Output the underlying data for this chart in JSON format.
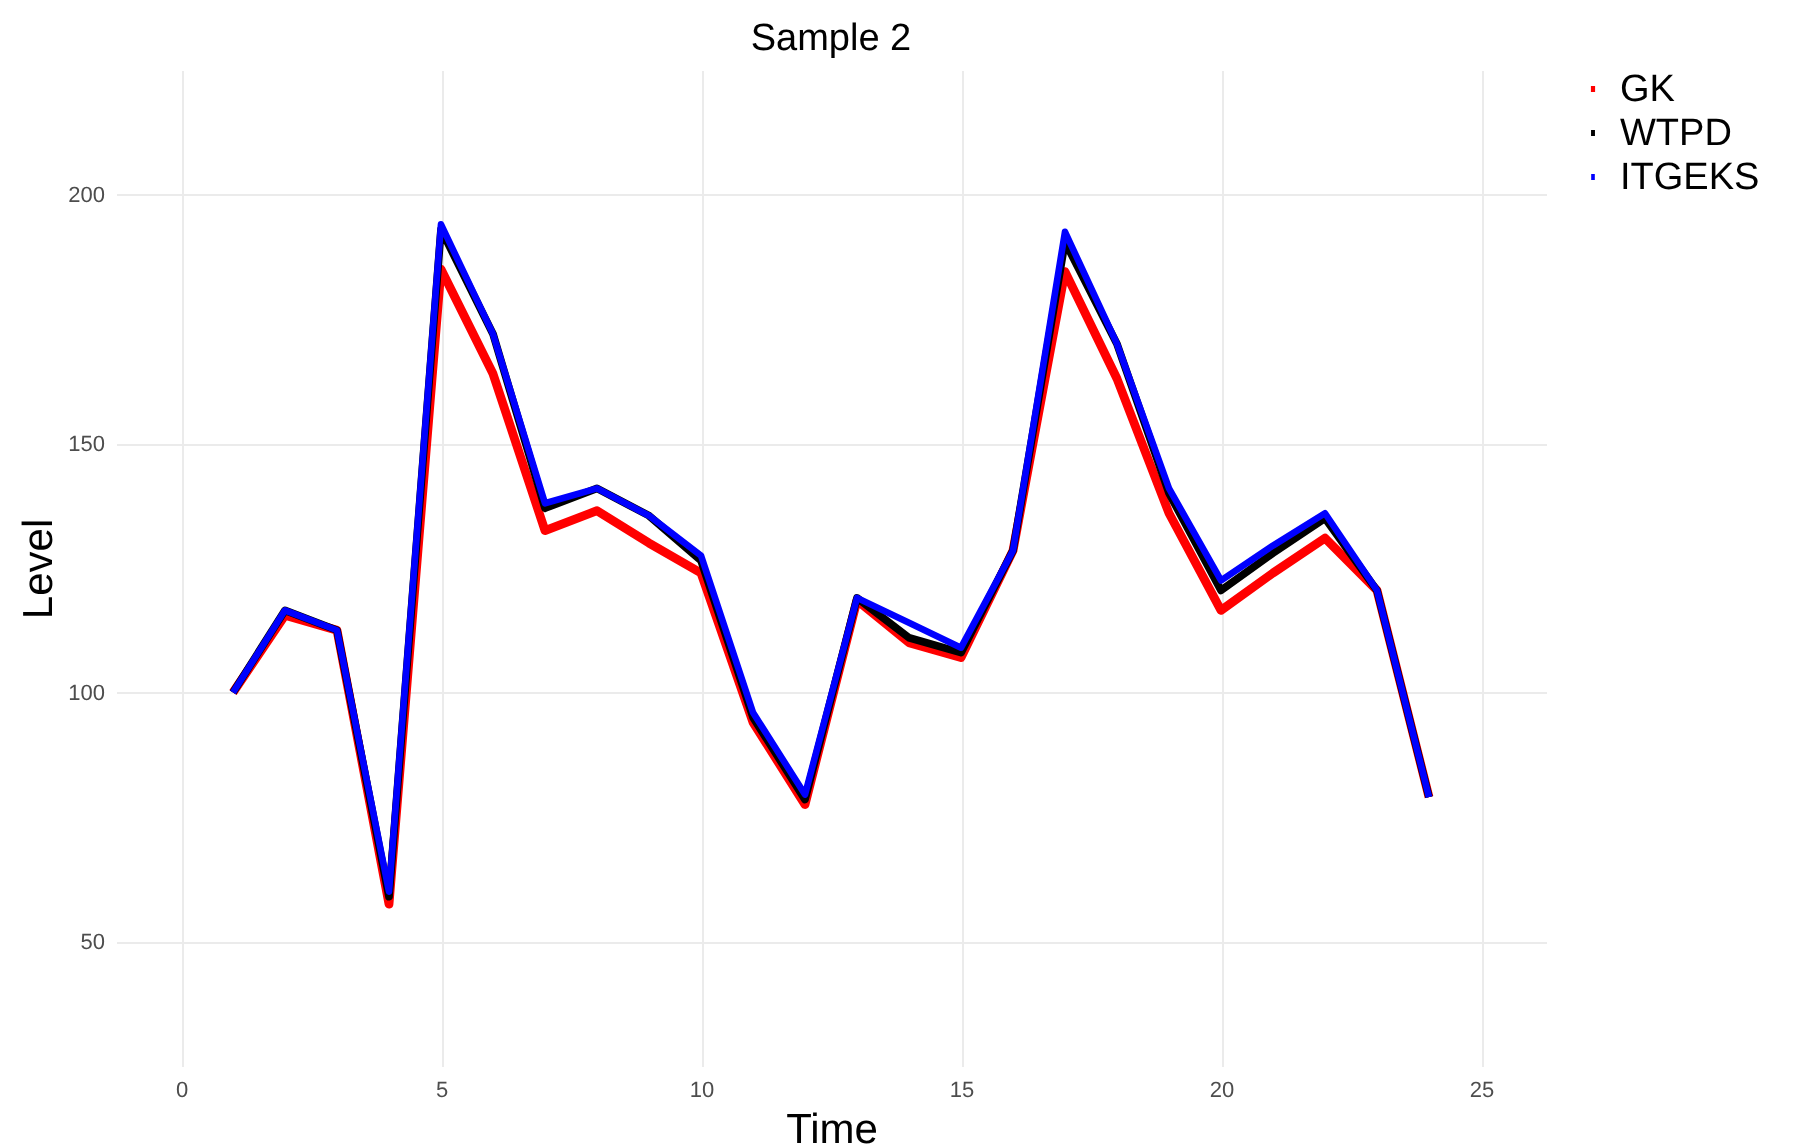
{
  "chart_data": {
    "type": "line",
    "title": "Sample 2",
    "xlabel": "Time",
    "ylabel": "Level",
    "x": [
      1,
      2,
      3,
      4,
      5,
      6,
      7,
      8,
      9,
      10,
      11,
      12,
      13,
      14,
      15,
      16,
      17,
      18,
      19,
      20,
      21,
      22,
      23,
      24
    ],
    "series": [
      {
        "name": "GK",
        "color": "#ff0000",
        "values": [
          100,
          115.5,
          112.5,
          57.5,
          185,
          164,
          132.5,
          136.5,
          130,
          124,
          94,
          77.5,
          118.5,
          110,
          107,
          128.5,
          184.5,
          163,
          136,
          116.5,
          124,
          131,
          120.5,
          79
        ]
      },
      {
        "name": "WTPD",
        "color": "#000000",
        "values": [
          100,
          116.5,
          112.5,
          59,
          193,
          172,
          137,
          141,
          135.5,
          126.5,
          95,
          78.5,
          119,
          111,
          108,
          128.5,
          190.5,
          170,
          140,
          120.5,
          128,
          135,
          120.5,
          79
        ]
      },
      {
        "name": "ITGEKS",
        "color": "#0000ff",
        "values": [
          100,
          116.5,
          112.5,
          60,
          194,
          172,
          138,
          141,
          135.5,
          127.5,
          96,
          79.5,
          119,
          114,
          109,
          128.5,
          192.5,
          170,
          141,
          122.5,
          129.5,
          136,
          120.5,
          79
        ]
      }
    ],
    "xlim": [
      -1.25,
      26.25
    ],
    "ylim": [
      25,
      225
    ],
    "xticks": [
      0,
      5,
      10,
      15,
      20,
      25
    ],
    "yticks": [
      50,
      100,
      150,
      200
    ],
    "grid": true,
    "legend": "right",
    "line_style": "solid",
    "marker": "none"
  }
}
